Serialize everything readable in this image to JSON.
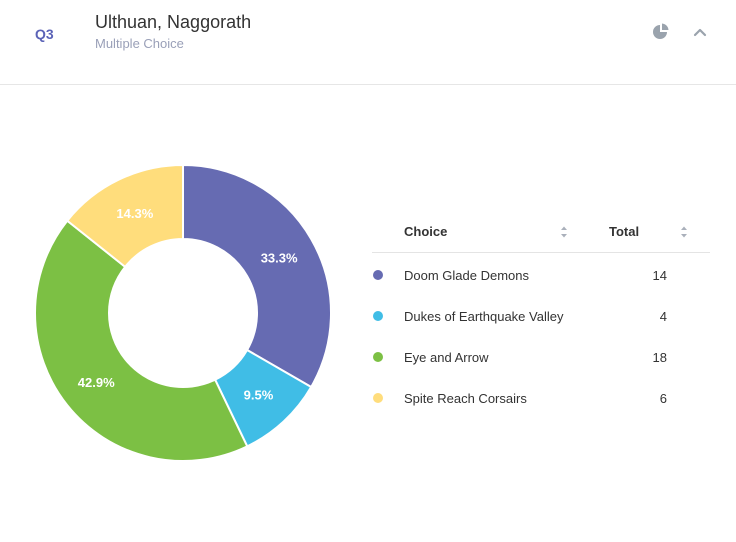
{
  "question": {
    "number": "Q3",
    "title": "Ulthuan, Naggorath",
    "type": "Multiple Choice"
  },
  "icons": {
    "chart_toggle": "pie-chart-icon",
    "collapse": "chevron-up-icon"
  },
  "table": {
    "choice_header": "Choice",
    "total_header": "Total"
  },
  "chart_data": {
    "type": "pie",
    "variant": "donut",
    "categories": [
      "Doom Glade Demons",
      "Dukes of Earthquake Valley",
      "Eye and Arrow",
      "Spite Reach Corsairs"
    ],
    "values": [
      14,
      4,
      18,
      6
    ],
    "percent_labels": [
      "33.3%",
      "9.5%",
      "42.9%",
      "14.3%"
    ],
    "colors": [
      "#666bb2",
      "#40bde6",
      "#7cc044",
      "#ffdd7c"
    ],
    "legend_position": "right"
  }
}
